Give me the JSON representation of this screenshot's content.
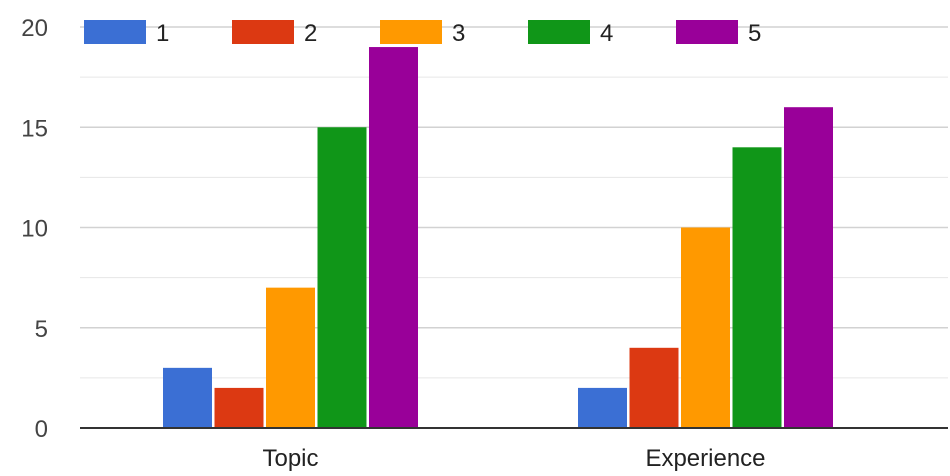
{
  "chart_data": {
    "type": "bar",
    "title": "",
    "xlabel": "",
    "ylabel": "",
    "categories": [
      "Topic",
      "Experience"
    ],
    "series": [
      {
        "name": "1",
        "color": "#3b6fd4",
        "values": [
          3,
          2
        ]
      },
      {
        "name": "2",
        "color": "#dc3912",
        "values": [
          2,
          4
        ]
      },
      {
        "name": "3",
        "color": "#ff9900",
        "values": [
          7,
          10
        ]
      },
      {
        "name": "4",
        "color": "#109618",
        "values": [
          15,
          14
        ]
      },
      {
        "name": "5",
        "color": "#990099",
        "values": [
          19,
          16
        ]
      }
    ],
    "ylim": [
      0,
      20
    ],
    "yticks": [
      0,
      5,
      10,
      15,
      20
    ],
    "ytick_labels": [
      "0",
      "5",
      "10",
      "15",
      "20"
    ],
    "minor_gridlines": true,
    "legend_position": "top-left"
  }
}
